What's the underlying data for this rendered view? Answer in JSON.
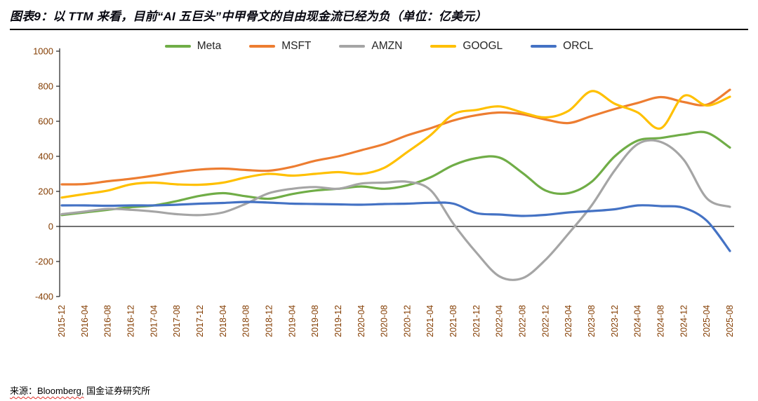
{
  "figure": {
    "title": "图表9：以 TTM 来看，目前“AI 五巨头”中甲骨文的自由现金流已经为负（单位：亿美元）",
    "source_prefix": "来源：Bloomberg,",
    "source_suffix": " 国金证券研究所"
  },
  "chart_data": {
    "type": "line",
    "title": "以TTM来看，目前“AI五巨头”中甲骨文的自由现金流已经为负",
    "unit": "亿美元",
    "smooth": true,
    "grid": false,
    "legend_position": "top",
    "ylim": [
      -400,
      1000
    ],
    "yticks": [
      -400,
      -200,
      0,
      200,
      400,
      600,
      800,
      1000
    ],
    "tick_color": "#833C00",
    "axis_color": "#1f1f1f",
    "x": [
      "2015-12",
      "2016-04",
      "2016-08",
      "2016-12",
      "2017-04",
      "2017-08",
      "2017-12",
      "2018-04",
      "2018-08",
      "2018-12",
      "2019-04",
      "2019-08",
      "2019-12",
      "2020-04",
      "2020-08",
      "2020-12",
      "2021-04",
      "2021-08",
      "2021-12",
      "2022-04",
      "2022-08",
      "2022-12",
      "2023-04",
      "2023-08",
      "2023-12",
      "2024-04",
      "2024-08",
      "2024-12",
      "2025-04",
      "2025-08"
    ],
    "series": [
      {
        "name": "Meta",
        "color": "#70AD47",
        "values": [
          65,
          80,
          95,
          110,
          120,
          145,
          175,
          190,
          172,
          158,
          185,
          205,
          215,
          228,
          215,
          235,
          280,
          350,
          390,
          393,
          305,
          205,
          190,
          255,
          400,
          490,
          505,
          525,
          535,
          450
        ]
      },
      {
        "name": "MSFT",
        "color": "#ED7D31",
        "values": [
          240,
          242,
          258,
          272,
          290,
          310,
          325,
          330,
          322,
          318,
          340,
          375,
          400,
          435,
          470,
          520,
          560,
          605,
          635,
          650,
          640,
          610,
          590,
          630,
          670,
          705,
          738,
          710,
          695,
          780
        ]
      },
      {
        "name": "AMZN",
        "color": "#A5A5A5",
        "values": [
          70,
          85,
          100,
          95,
          85,
          70,
          65,
          80,
          130,
          190,
          215,
          225,
          215,
          245,
          250,
          255,
          208,
          15,
          -150,
          -285,
          -295,
          -190,
          -40,
          120,
          320,
          470,
          482,
          380,
          160,
          112
        ]
      },
      {
        "name": "GOOGL",
        "color": "#FFC000",
        "values": [
          165,
          185,
          205,
          240,
          250,
          240,
          238,
          250,
          280,
          300,
          290,
          300,
          310,
          300,
          335,
          425,
          520,
          640,
          665,
          685,
          650,
          622,
          660,
          772,
          700,
          650,
          560,
          745,
          690,
          740
        ]
      },
      {
        "name": "ORCL",
        "color": "#4472C4",
        "values": [
          120,
          120,
          118,
          120,
          120,
          124,
          130,
          134,
          140,
          136,
          130,
          128,
          126,
          124,
          128,
          130,
          135,
          130,
          76,
          68,
          60,
          66,
          80,
          88,
          98,
          120,
          116,
          106,
          32,
          -140
        ]
      }
    ]
  }
}
